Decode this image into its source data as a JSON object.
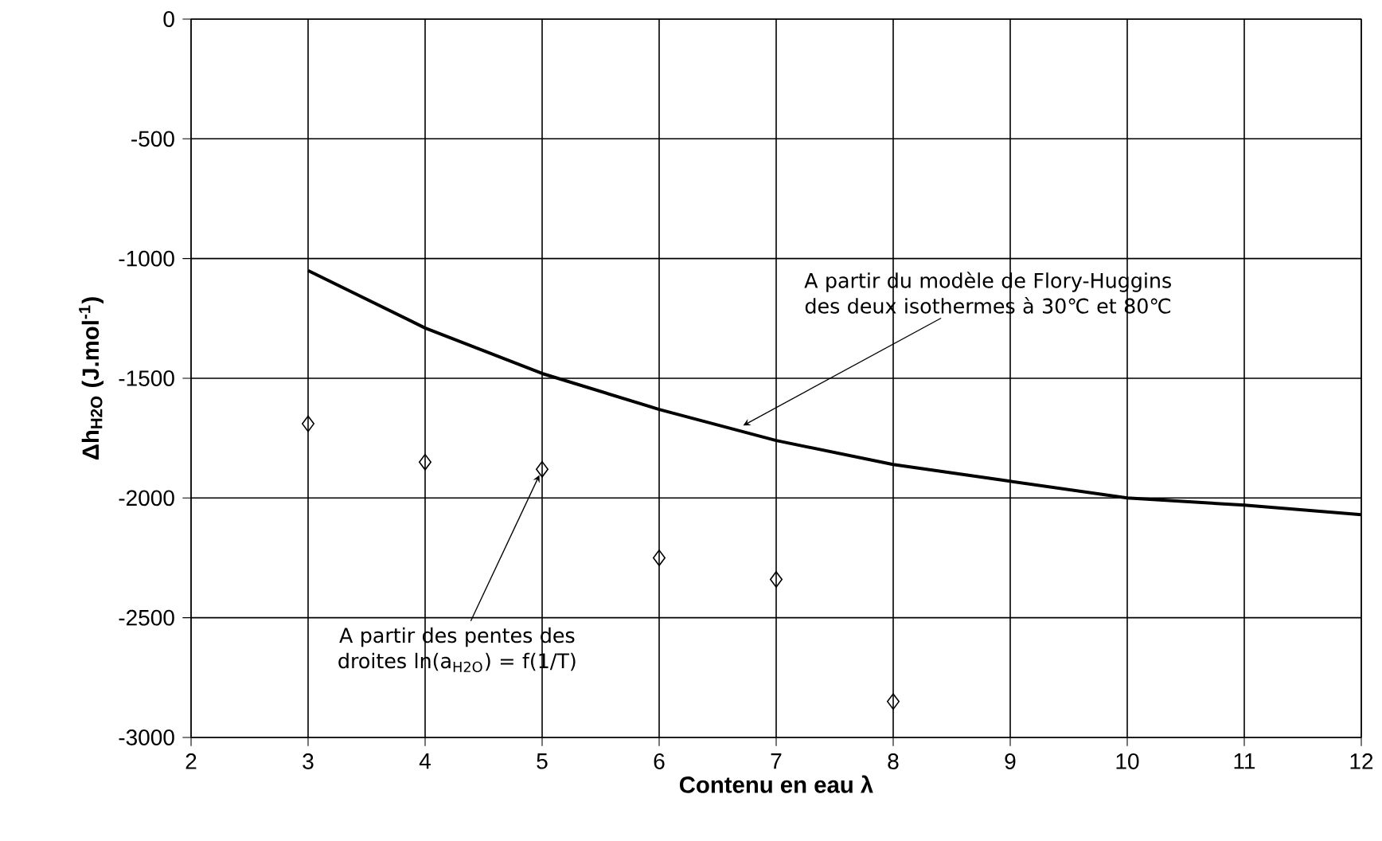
{
  "chart_data": {
    "type": "line",
    "xlabel": "Contenu en eau λ",
    "ylabel": "**Δh$_{H2O}$ (J.mol$^{-1}$)**",
    "xlim": [
      2,
      12
    ],
    "xticks": [
      2,
      3,
      4,
      5,
      6,
      7,
      8,
      9,
      10,
      11,
      12
    ],
    "ylim": [
      -3000,
      0
    ],
    "yticks": [
      -3000,
      -2500,
      -2000,
      -1500,
      -1000,
      -500,
      0
    ],
    "grid": true,
    "series": [
      {
        "color": "#000000",
        "marker": "none",
        "line_style": "solid",
        "x": [
          3,
          4,
          5,
          6,
          7,
          8,
          9,
          10,
          11,
          12
        ],
        "values": [
          -1050,
          -1290,
          -1480,
          -1630,
          -1760,
          -1860,
          -1930,
          -2000,
          -2030,
          -2070
        ]
      },
      {
        "type": "scatter",
        "color": "#000000",
        "marker": "diamond",
        "x": [
          3,
          4,
          5,
          6,
          7,
          8
        ],
        "values": [
          -1690,
          -1850,
          -1880,
          -2250,
          -2340,
          -2850
        ]
      }
    ],
    "annotations": [
      {
        "text": "A partir du modèle de Flory-Huggins des deux isothermes à 30℃ et 80℃",
        "x": 6.67,
        "y": -1710
      },
      {
        "text": "A partir des pentes des droites ln(a$_{H2O}$) = f(1/T)",
        "x": 5,
        "y": -1880
      }
    ]
  }
}
